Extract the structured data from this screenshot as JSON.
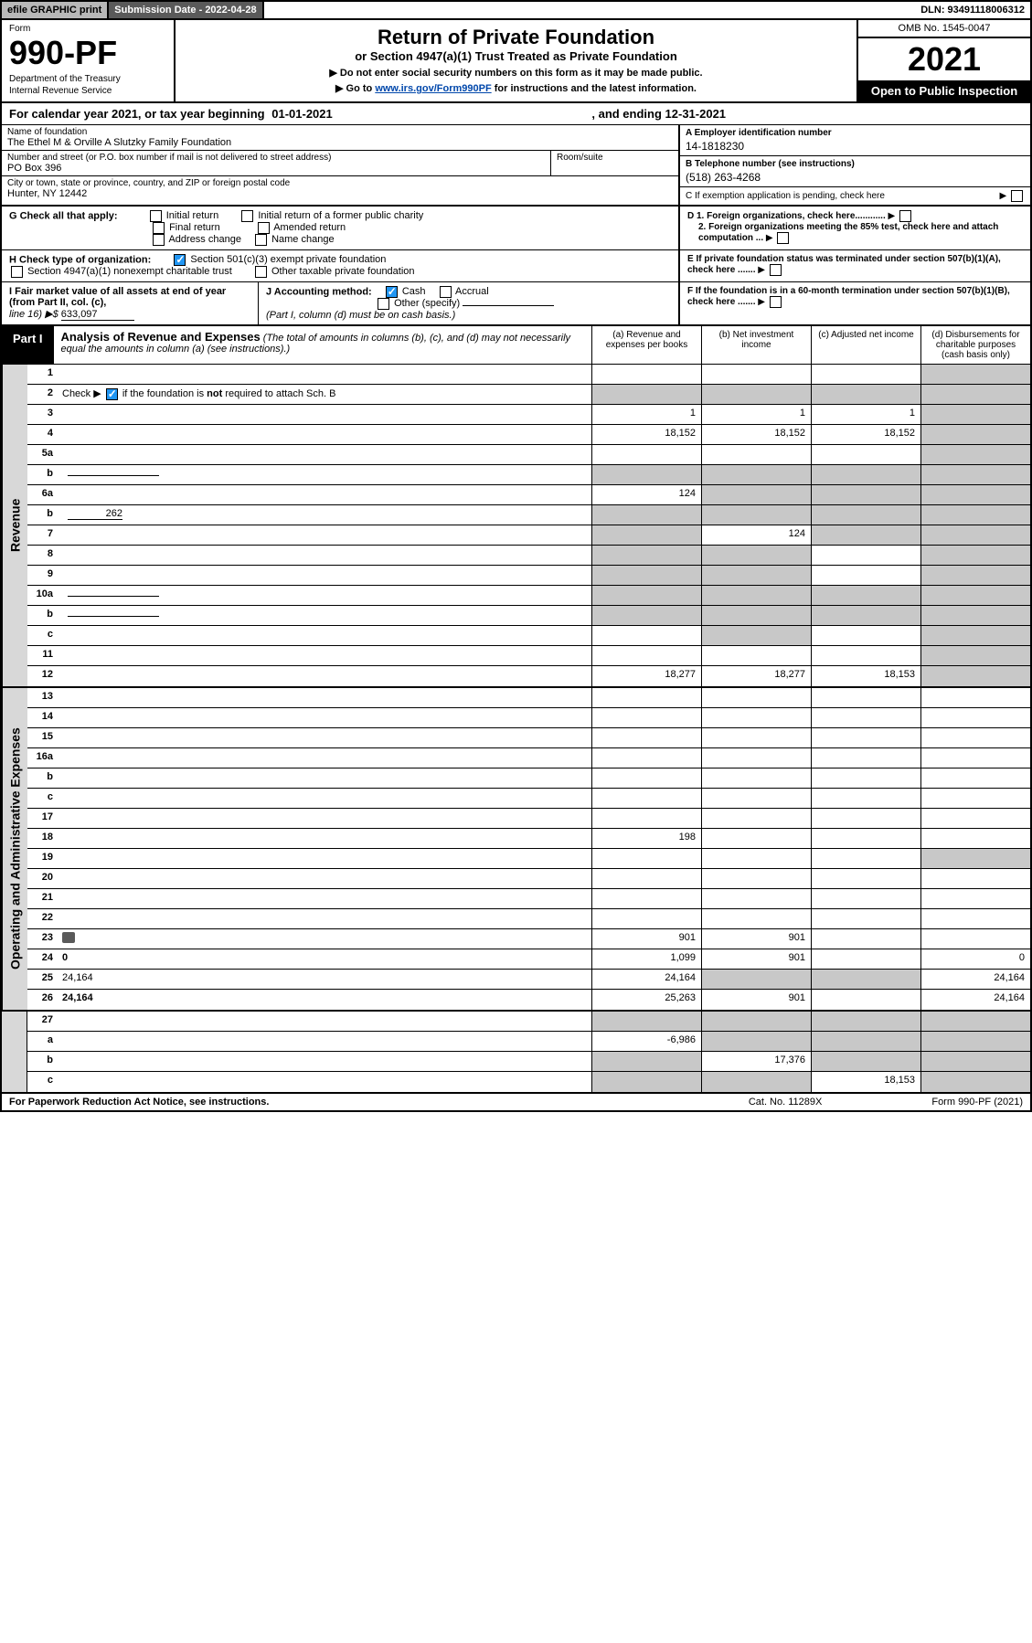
{
  "topbar": {
    "efile": "efile GRAPHIC print",
    "submission_label": "Submission Date - 2022-04-28",
    "dln": "DLN: 93491118006312"
  },
  "header": {
    "form_word": "Form",
    "form_number": "990-PF",
    "dept1": "Department of the Treasury",
    "dept2": "Internal Revenue Service",
    "title1": "Return of Private Foundation",
    "title2": "or Section 4947(a)(1) Trust Treated as Private Foundation",
    "sub1": "▶ Do not enter social security numbers on this form as it may be made public.",
    "sub2_pre": "▶ Go to ",
    "sub2_link": "www.irs.gov/Form990PF",
    "sub2_post": " for instructions and the latest information.",
    "omb": "OMB No. 1545-0047",
    "year": "2021",
    "inspection": "Open to Public Inspection"
  },
  "calyear": {
    "pre": "For calendar year 2021, or tax year beginning ",
    "begin": "01-01-2021",
    "mid": ", and ending ",
    "end": "12-31-2021"
  },
  "info": {
    "name_label": "Name of foundation",
    "name_value": "The Ethel M & Orville A Slutzky Family Foundation",
    "street_label": "Number and street (or P.O. box number if mail is not delivered to street address)",
    "street_value": "PO Box 396",
    "room_label": "Room/suite",
    "city_label": "City or town, state or province, country, and ZIP or foreign postal code",
    "city_value": "Hunter, NY  12442",
    "a_label": "A Employer identification number",
    "a_value": "14-1818230",
    "b_label": "B Telephone number (see instructions)",
    "b_value": "(518) 263-4268",
    "c_label": "C If exemption application is pending, check here",
    "d1": "D 1. Foreign organizations, check here............",
    "d2": "2. Foreign organizations meeting the 85% test, check here and attach computation ...",
    "e": "E  If private foundation status was terminated under section 507(b)(1)(A), check here .......",
    "f": "F  If the foundation is in a 60-month termination under section 507(b)(1)(B), check here .......",
    "g_label": "G Check all that apply:",
    "g_opts": [
      "Initial return",
      "Initial return of a former public charity",
      "Final return",
      "Amended return",
      "Address change",
      "Name change"
    ],
    "h_label": "H Check type of organization:",
    "h_opts": [
      "Section 501(c)(3) exempt private foundation",
      "Section 4947(a)(1) nonexempt charitable trust",
      "Other taxable private foundation"
    ],
    "i_label": "I Fair market value of all assets at end of year (from Part II, col. (c),",
    "i_line": "line 16) ▶$ ",
    "i_value": "633,097",
    "j_label": "J Accounting method:",
    "j_opts": [
      "Cash",
      "Accrual",
      "Other (specify)"
    ],
    "j_note": "(Part I, column (d) must be on cash basis.)"
  },
  "part1": {
    "label": "Part I",
    "title": "Analysis of Revenue and Expenses",
    "subtitle": " (The total of amounts in columns (b), (c), and (d) may not necessarily equal the amounts in column (a) (see instructions).)",
    "col_a": "(a)  Revenue and expenses per books",
    "col_b": "(b)  Net investment income",
    "col_c": "(c)  Adjusted net income",
    "col_d": "(d)  Disbursements for charitable purposes (cash basis only)"
  },
  "sections": {
    "revenue": "Revenue",
    "expenses": "Operating and Administrative Expenses"
  },
  "rows": [
    {
      "n": "1",
      "d": "",
      "a": "",
      "b": "",
      "c": "",
      "shade_d": true
    },
    {
      "n": "2",
      "d": "",
      "a": "",
      "b": "",
      "c": "",
      "shade_a": true,
      "shade_b": true,
      "shade_c": true,
      "shade_d": true,
      "has_check": true
    },
    {
      "n": "3",
      "d": "",
      "a": "1",
      "b": "1",
      "c": "1",
      "shade_d": true
    },
    {
      "n": "4",
      "d": "",
      "a": "18,152",
      "b": "18,152",
      "c": "18,152",
      "shade_d": true
    },
    {
      "n": "5a",
      "d": "",
      "a": "",
      "b": "",
      "c": "",
      "shade_d": true
    },
    {
      "n": "b",
      "d": "",
      "a": "",
      "b": "",
      "c": "",
      "shade_a": true,
      "shade_b": true,
      "shade_c": true,
      "shade_d": true,
      "inline_box": true
    },
    {
      "n": "6a",
      "d": "",
      "a": "124",
      "b": "",
      "c": "",
      "shade_b": true,
      "shade_c": true,
      "shade_d": true
    },
    {
      "n": "b",
      "d": "",
      "a": "",
      "b": "",
      "c": "",
      "shade_a": true,
      "shade_b": true,
      "shade_c": true,
      "shade_d": true,
      "inline_val": "262"
    },
    {
      "n": "7",
      "d": "",
      "a": "",
      "b": "124",
      "c": "",
      "shade_a": true,
      "shade_c": true,
      "shade_d": true
    },
    {
      "n": "8",
      "d": "",
      "a": "",
      "b": "",
      "c": "",
      "shade_a": true,
      "shade_b": true,
      "shade_d": true
    },
    {
      "n": "9",
      "d": "",
      "a": "",
      "b": "",
      "c": "",
      "shade_a": true,
      "shade_b": true,
      "shade_d": true
    },
    {
      "n": "10a",
      "d": "",
      "a": "",
      "b": "",
      "c": "",
      "shade_a": true,
      "shade_b": true,
      "shade_c": true,
      "shade_d": true,
      "inline_box": true
    },
    {
      "n": "b",
      "d": "",
      "a": "",
      "b": "",
      "c": "",
      "shade_a": true,
      "shade_b": true,
      "shade_c": true,
      "shade_d": true,
      "inline_box": true
    },
    {
      "n": "c",
      "d": "",
      "a": "",
      "b": "",
      "c": "",
      "shade_b": true,
      "shade_d": true
    },
    {
      "n": "11",
      "d": "",
      "a": "",
      "b": "",
      "c": "",
      "shade_d": true
    },
    {
      "n": "12",
      "d": "",
      "a": "18,277",
      "b": "18,277",
      "c": "18,153",
      "bold": true,
      "shade_d": true
    }
  ],
  "exp_rows": [
    {
      "n": "13",
      "d": "",
      "a": "",
      "b": "",
      "c": ""
    },
    {
      "n": "14",
      "d": "",
      "a": "",
      "b": "",
      "c": ""
    },
    {
      "n": "15",
      "d": "",
      "a": "",
      "b": "",
      "c": ""
    },
    {
      "n": "16a",
      "d": "",
      "a": "",
      "b": "",
      "c": ""
    },
    {
      "n": "b",
      "d": "",
      "a": "",
      "b": "",
      "c": ""
    },
    {
      "n": "c",
      "d": "",
      "a": "",
      "b": "",
      "c": ""
    },
    {
      "n": "17",
      "d": "",
      "a": "",
      "b": "",
      "c": ""
    },
    {
      "n": "18",
      "d": "",
      "a": "198",
      "b": "",
      "c": ""
    },
    {
      "n": "19",
      "d": "",
      "a": "",
      "b": "",
      "c": "",
      "shade_d": true
    },
    {
      "n": "20",
      "d": "",
      "a": "",
      "b": "",
      "c": ""
    },
    {
      "n": "21",
      "d": "",
      "a": "",
      "b": "",
      "c": ""
    },
    {
      "n": "22",
      "d": "",
      "a": "",
      "b": "",
      "c": ""
    },
    {
      "n": "23",
      "d": "",
      "a": "901",
      "b": "901",
      "c": "",
      "icon": true
    },
    {
      "n": "24",
      "d": "0",
      "a": "1,099",
      "b": "901",
      "c": "",
      "bold": true
    },
    {
      "n": "25",
      "d": "24,164",
      "a": "24,164",
      "b": "",
      "c": "",
      "shade_b": true,
      "shade_c": true
    },
    {
      "n": "26",
      "d": "24,164",
      "a": "25,263",
      "b": "901",
      "c": "",
      "bold": true
    }
  ],
  "bottom_rows": [
    {
      "n": "27",
      "d": "",
      "a": "",
      "b": "",
      "c": "",
      "shade_a": true,
      "shade_b": true,
      "shade_c": true,
      "shade_d": true
    },
    {
      "n": "a",
      "d": "",
      "a": "-6,986",
      "b": "",
      "c": "",
      "bold": true,
      "shade_b": true,
      "shade_c": true,
      "shade_d": true
    },
    {
      "n": "b",
      "d": "",
      "a": "",
      "b": "17,376",
      "c": "",
      "bold": true,
      "shade_a": true,
      "shade_c": true,
      "shade_d": true
    },
    {
      "n": "c",
      "d": "",
      "a": "",
      "b": "",
      "c": "18,153",
      "bold": true,
      "shade_a": true,
      "shade_b": true,
      "shade_d": true
    }
  ],
  "footer": {
    "left": "For Paperwork Reduction Act Notice, see instructions.",
    "mid": "Cat. No. 11289X",
    "right": "Form 990-PF (2021)"
  },
  "colors": {
    "shade": "#c8c8c8",
    "topbar_gray": "#b8b8b8",
    "topbar_dark": "#5a5a5a",
    "link": "#0047ab",
    "check": "#2196f3"
  }
}
